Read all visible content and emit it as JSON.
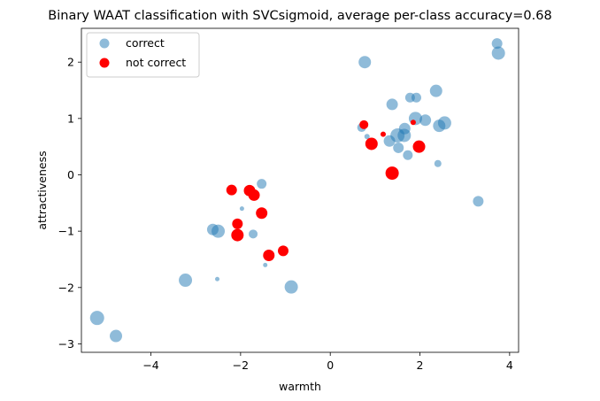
{
  "chart_data": {
    "type": "scatter",
    "title": "Binary WAAT classification with SVCsigmoid, average per-class accuracy=0.68",
    "xlabel": "warmth",
    "ylabel": "attractiveness",
    "xlim": [
      -5.55,
      4.2
    ],
    "ylim": [
      -3.15,
      2.6
    ],
    "xticks": [
      -4,
      -2,
      0,
      2,
      4
    ],
    "yticks": [
      -3,
      -2,
      -1,
      0,
      1,
      2
    ],
    "xtick_labels": [
      "−4",
      "−2",
      "0",
      "2",
      "4"
    ],
    "ytick_labels": [
      "−3",
      "−2",
      "−1",
      "0",
      "1",
      "2"
    ],
    "legend_position": "top-left",
    "series": [
      {
        "name": "correct",
        "color": "#1f77b4",
        "alpha": 0.5,
        "points": [
          {
            "x": -5.2,
            "y": -2.54,
            "s": 8
          },
          {
            "x": -4.78,
            "y": -2.86,
            "s": 7
          },
          {
            "x": -3.23,
            "y": -1.87,
            "s": 7.5
          },
          {
            "x": -2.62,
            "y": -0.97,
            "s": 6.5
          },
          {
            "x": -2.5,
            "y": -1.0,
            "s": 7.5
          },
          {
            "x": -2.52,
            "y": -1.85,
            "s": 2.5
          },
          {
            "x": -1.97,
            "y": -0.6,
            "s": 2.5
          },
          {
            "x": -1.72,
            "y": -1.05,
            "s": 5
          },
          {
            "x": -1.53,
            "y": -0.16,
            "s": 5.5
          },
          {
            "x": -1.45,
            "y": -1.6,
            "s": 2.5
          },
          {
            "x": -0.87,
            "y": -1.99,
            "s": 7.5
          },
          {
            "x": 0.77,
            "y": 2.0,
            "s": 7
          },
          {
            "x": 0.7,
            "y": 0.84,
            "s": 5
          },
          {
            "x": 0.82,
            "y": 0.68,
            "s": 3
          },
          {
            "x": 1.38,
            "y": 1.25,
            "s": 6.5
          },
          {
            "x": 1.32,
            "y": 0.6,
            "s": 6.5
          },
          {
            "x": 1.5,
            "y": 0.7,
            "s": 8
          },
          {
            "x": 1.52,
            "y": 0.48,
            "s": 6
          },
          {
            "x": 1.65,
            "y": 0.7,
            "s": 7.5
          },
          {
            "x": 1.66,
            "y": 0.82,
            "s": 6.5
          },
          {
            "x": 1.73,
            "y": 0.35,
            "s": 5.5
          },
          {
            "x": 1.78,
            "y": 1.37,
            "s": 5.5
          },
          {
            "x": 1.92,
            "y": 1.37,
            "s": 5.5
          },
          {
            "x": 1.9,
            "y": 1.0,
            "s": 7.5
          },
          {
            "x": 2.12,
            "y": 0.97,
            "s": 6.5
          },
          {
            "x": 2.36,
            "y": 1.49,
            "s": 7
          },
          {
            "x": 2.43,
            "y": 0.87,
            "s": 7
          },
          {
            "x": 2.55,
            "y": 0.92,
            "s": 7.5
          },
          {
            "x": 2.4,
            "y": 0.2,
            "s": 4
          },
          {
            "x": 3.3,
            "y": -0.47,
            "s": 6
          },
          {
            "x": 3.72,
            "y": 2.33,
            "s": 6
          },
          {
            "x": 3.75,
            "y": 2.16,
            "s": 7.5
          }
        ]
      },
      {
        "name": "not correct",
        "color": "#ff0000",
        "alpha": 1,
        "points": [
          {
            "x": -2.2,
            "y": -0.27,
            "s": 6
          },
          {
            "x": -1.8,
            "y": -0.28,
            "s": 6.5
          },
          {
            "x": -1.7,
            "y": -0.36,
            "s": 6.5
          },
          {
            "x": -1.53,
            "y": -0.68,
            "s": 6.5
          },
          {
            "x": -2.07,
            "y": -0.87,
            "s": 6
          },
          {
            "x": -2.07,
            "y": -1.07,
            "s": 7
          },
          {
            "x": -1.37,
            "y": -1.43,
            "s": 6.5
          },
          {
            "x": -1.05,
            "y": -1.35,
            "s": 6
          },
          {
            "x": 0.75,
            "y": 0.89,
            "s": 5
          },
          {
            "x": 0.92,
            "y": 0.55,
            "s": 7
          },
          {
            "x": 1.18,
            "y": 0.72,
            "s": 3
          },
          {
            "x": 1.38,
            "y": 0.03,
            "s": 7.5
          },
          {
            "x": 1.85,
            "y": 0.93,
            "s": 3
          },
          {
            "x": 1.98,
            "y": 0.5,
            "s": 7
          }
        ]
      }
    ]
  }
}
